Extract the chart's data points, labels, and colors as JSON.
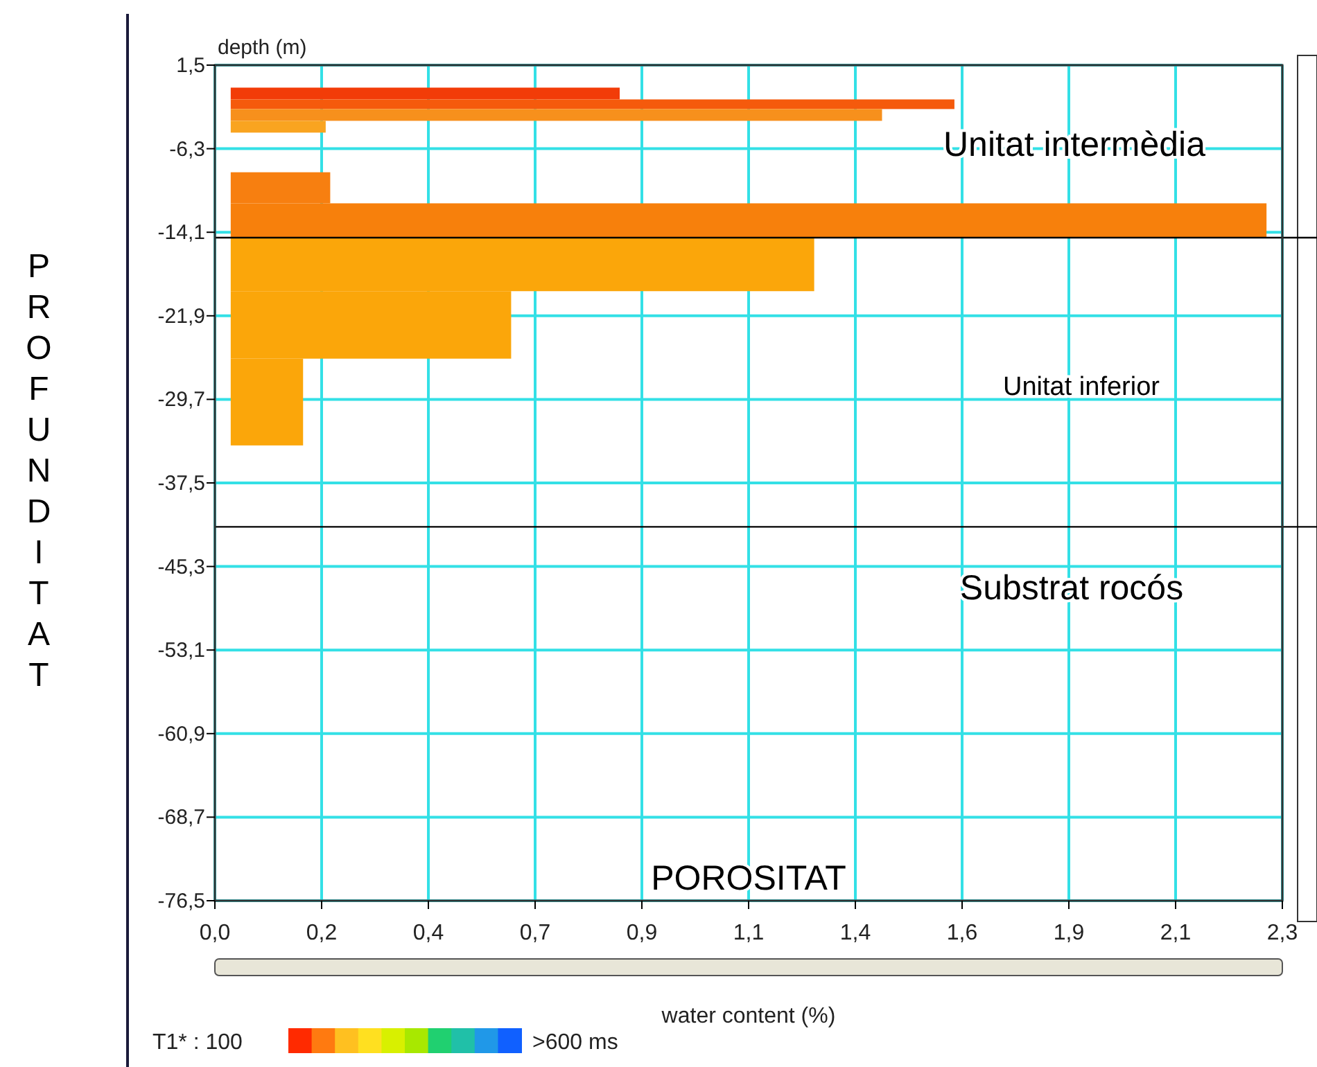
{
  "chart_data": {
    "type": "histogram",
    "orientation": "horizontal",
    "ylabel": "PROFUNDITAT",
    "xlabel": "water content (%)",
    "bins": [
      -0.6,
      -1.7,
      -2.6,
      -3.7,
      -4.8,
      -8.5,
      -11.4,
      -14.6,
      -19.6,
      -25.9,
      -34.0
    ],
    "values": [
      0.86,
      1.6,
      1.44,
      0.21,
      null,
      0.22,
      2.29,
      1.29,
      0.62,
      0.16
    ],
    "colors": [
      "#f23c08",
      "#f55a0c",
      "#f7901c",
      "#f9a420",
      null,
      "#f77f10",
      "#f7800c",
      "#fba60a",
      "#fba60a",
      "#fba60a"
    ],
    "xlim": [
      -0.035,
      2.325
    ],
    "xticks": [
      {
        "value": -0.035,
        "label": "0,0"
      },
      {
        "value": 0.201,
        "label": "0,2"
      },
      {
        "value": 0.437,
        "label": "0,4"
      },
      {
        "value": 0.673,
        "label": "0,7"
      },
      {
        "value": 0.909,
        "label": "0,9"
      },
      {
        "value": 1.145,
        "label": "1,1"
      },
      {
        "value": 1.381,
        "label": "1,4"
      },
      {
        "value": 1.617,
        "label": "1,6"
      },
      {
        "value": 1.853,
        "label": "1,9"
      },
      {
        "value": 2.089,
        "label": "2,1"
      },
      {
        "value": 2.325,
        "label": "2,3"
      }
    ],
    "ylim": [
      -76.5,
      1.5
    ],
    "yticks": [
      {
        "value": 1.5,
        "label": "1,5"
      },
      {
        "value": -6.3,
        "label": "-6,3"
      },
      {
        "value": -14.1,
        "label": "-14,1"
      },
      {
        "value": -21.9,
        "label": "-21,9"
      },
      {
        "value": -29.7,
        "label": "-29,7"
      },
      {
        "value": -37.5,
        "label": "-37,5"
      },
      {
        "value": -45.3,
        "label": "-45,3"
      },
      {
        "value": -53.1,
        "label": "-53,1"
      },
      {
        "value": -60.9,
        "label": "-60,9"
      },
      {
        "value": -68.7,
        "label": "-68,7"
      },
      {
        "value": -76.5,
        "label": "-76,5"
      }
    ],
    "grid": true,
    "ref_lines": [
      {
        "axis": "y",
        "value": -14.6,
        "color": "#000000"
      },
      {
        "axis": "y",
        "value": -41.6,
        "color": "#000000"
      }
    ],
    "annotations": [
      "depth (m)",
      "POROSITAT",
      "Unitat intermèdia",
      "Unitat inferior",
      "Substrat rocós",
      "T1* : 100",
      ">600 ms"
    ]
  }
}
